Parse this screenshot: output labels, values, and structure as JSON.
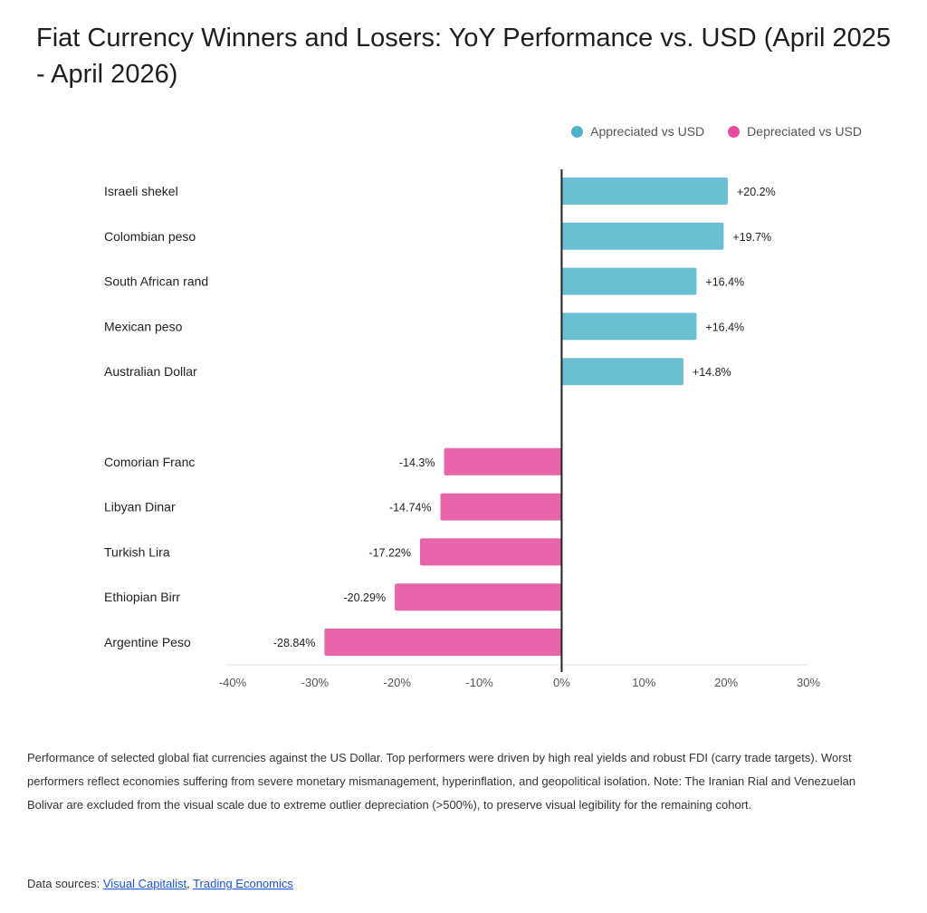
{
  "chart_data": {
    "type": "bar",
    "orientation": "horizontal",
    "title": "Fiat Currency Winners and Losers: YoY Performance vs. USD (April 2025 - April 2026)",
    "categories": [
      "Israeli shekel",
      "Colombian peso",
      "South African rand",
      "Mexican peso",
      "Australian Dollar",
      "",
      "Comorian Franc",
      "Libyan Dinar",
      "Turkish Lira",
      "Ethiopian Birr",
      "Argentine Peso"
    ],
    "values": [
      20.2,
      19.7,
      16.4,
      16.4,
      14.8,
      null,
      -14.3,
      -14.74,
      -17.22,
      -20.29,
      -28.84
    ],
    "data_labels": [
      "+20.2%",
      "+19.7%",
      "+16.4%",
      "+16.4%",
      "+14.8%",
      "",
      "-14.3%",
      "-14.74%",
      "-17.22%",
      "-20.29%",
      "-28.84%"
    ],
    "xlim": [
      -40,
      30
    ],
    "xticks": [
      -40,
      -30,
      -20,
      -10,
      0,
      10,
      20,
      30
    ],
    "xtick_labels": [
      "-40%",
      "-30%",
      "-20%",
      "-10%",
      "0%",
      "10%",
      "20%",
      "30%"
    ],
    "grid": false,
    "legend_placement": "top-right",
    "series": [
      {
        "name": "Appreciated vs USD",
        "color": "#6bbfd2",
        "legend_color": "#4fb3cc"
      },
      {
        "name": "Depreciated vs USD",
        "color": "#e766aa",
        "legend_color": "#e94ba0"
      }
    ]
  },
  "note": "Performance of selected global fiat currencies against the US Dollar. Top performers were driven by high real yields and robust FDI (carry trade targets). Worst performers reflect economies suffering from severe monetary mismanagement, hyperinflation, and geopolitical isolation. Note: The Iranian Rial and Venezuelan Bolivar are excluded from the visual scale due to extreme outlier depreciation (>500%), to preserve visual legibility for the remaining cohort.",
  "sources": {
    "label": "Data sources:",
    "links": [
      "Visual Capitalist",
      "Trading Economics"
    ]
  }
}
